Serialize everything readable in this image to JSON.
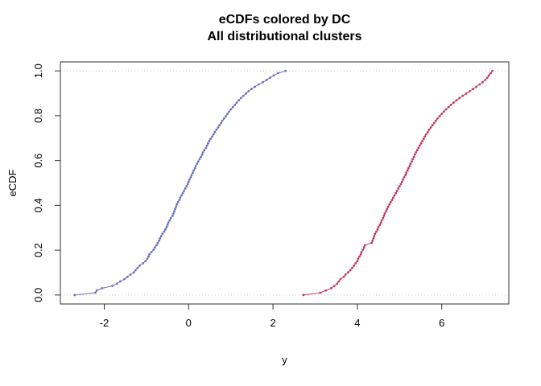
{
  "window": {
    "background": "#ffffff"
  },
  "chart_data": {
    "type": "line",
    "subtype": "ecdf-lines-with-point-markers",
    "title": "eCDFs colored by DC",
    "subtitle": "All distributional clusters",
    "xlabel": "y",
    "ylabel": "eCDF",
    "xlim": [
      -3.04,
      7.59
    ],
    "ylim": [
      -0.04,
      1.04
    ],
    "xticks": {
      "values": [
        -2,
        0,
        2,
        4,
        6
      ],
      "labels": [
        "-2",
        "0",
        "2",
        "4",
        "6"
      ]
    },
    "yticks": {
      "values": [
        0,
        0.2,
        0.4,
        0.6,
        0.8,
        1.0
      ],
      "labels": [
        "0.0",
        "0.2",
        "0.4",
        "0.6",
        "0.8",
        "1.0"
      ]
    },
    "gridlines": {
      "y_values": [
        0,
        1
      ],
      "style": "dotted",
      "color": "#c8c8c8"
    },
    "legend": "none",
    "axis_color": "#333333",
    "text_color": "#000000",
    "ecdf_note": "each series: sorted sample x values, eCDF y rises 0 to 1 in equal steps",
    "series": [
      {
        "name": "blue-cluster",
        "color": "#6e70bd",
        "x_sorted": [
          -2.7,
          -2.21,
          -2.18,
          -2.05,
          -1.81,
          -1.7,
          -1.62,
          -1.52,
          -1.45,
          -1.38,
          -1.3,
          -1.26,
          -1.21,
          -1.16,
          -1.08,
          -1.02,
          -0.98,
          -0.95,
          -0.93,
          -0.88,
          -0.83,
          -0.8,
          -0.76,
          -0.73,
          -0.7,
          -0.68,
          -0.65,
          -0.62,
          -0.58,
          -0.55,
          -0.52,
          -0.5,
          -0.48,
          -0.45,
          -0.42,
          -0.38,
          -0.36,
          -0.34,
          -0.32,
          -0.3,
          -0.28,
          -0.25,
          -0.22,
          -0.2,
          -0.17,
          -0.14,
          -0.11,
          -0.08,
          -0.05,
          -0.02,
          0.0,
          0.02,
          0.05,
          0.07,
          0.1,
          0.12,
          0.15,
          0.17,
          0.2,
          0.23,
          0.26,
          0.29,
          0.32,
          0.34,
          0.37,
          0.41,
          0.44,
          0.46,
          0.49,
          0.52,
          0.56,
          0.59,
          0.62,
          0.66,
          0.7,
          0.73,
          0.77,
          0.8,
          0.84,
          0.88,
          0.92,
          0.96,
          1.0,
          1.05,
          1.1,
          1.14,
          1.19,
          1.24,
          1.3,
          1.36,
          1.42,
          1.49,
          1.57,
          1.66,
          1.76,
          1.85,
          1.93,
          2.02,
          2.12,
          2.3
        ]
      },
      {
        "name": "red-cluster",
        "color": "#c23a5f",
        "x_sorted": [
          2.72,
          3.12,
          3.25,
          3.38,
          3.45,
          3.52,
          3.56,
          3.6,
          3.68,
          3.72,
          3.78,
          3.83,
          3.88,
          3.92,
          3.96,
          4.0,
          4.02,
          4.05,
          4.08,
          4.1,
          4.13,
          4.16,
          4.18,
          4.34,
          4.36,
          4.38,
          4.4,
          4.42,
          4.45,
          4.48,
          4.5,
          4.53,
          4.56,
          4.58,
          4.61,
          4.63,
          4.65,
          4.68,
          4.7,
          4.73,
          4.76,
          4.79,
          4.82,
          4.85,
          4.88,
          4.91,
          4.94,
          4.97,
          5.0,
          5.03,
          5.06,
          5.08,
          5.11,
          5.14,
          5.16,
          5.19,
          5.21,
          5.24,
          5.26,
          5.29,
          5.31,
          5.34,
          5.36,
          5.39,
          5.42,
          5.45,
          5.48,
          5.51,
          5.54,
          5.57,
          5.6,
          5.63,
          5.67,
          5.7,
          5.74,
          5.78,
          5.82,
          5.86,
          5.9,
          5.95,
          6.0,
          6.05,
          6.1,
          6.16,
          6.22,
          6.28,
          6.35,
          6.42,
          6.5,
          6.58,
          6.66,
          6.74,
          6.82,
          6.9,
          6.97,
          7.03,
          7.08,
          7.12,
          7.16,
          7.2
        ]
      }
    ]
  }
}
